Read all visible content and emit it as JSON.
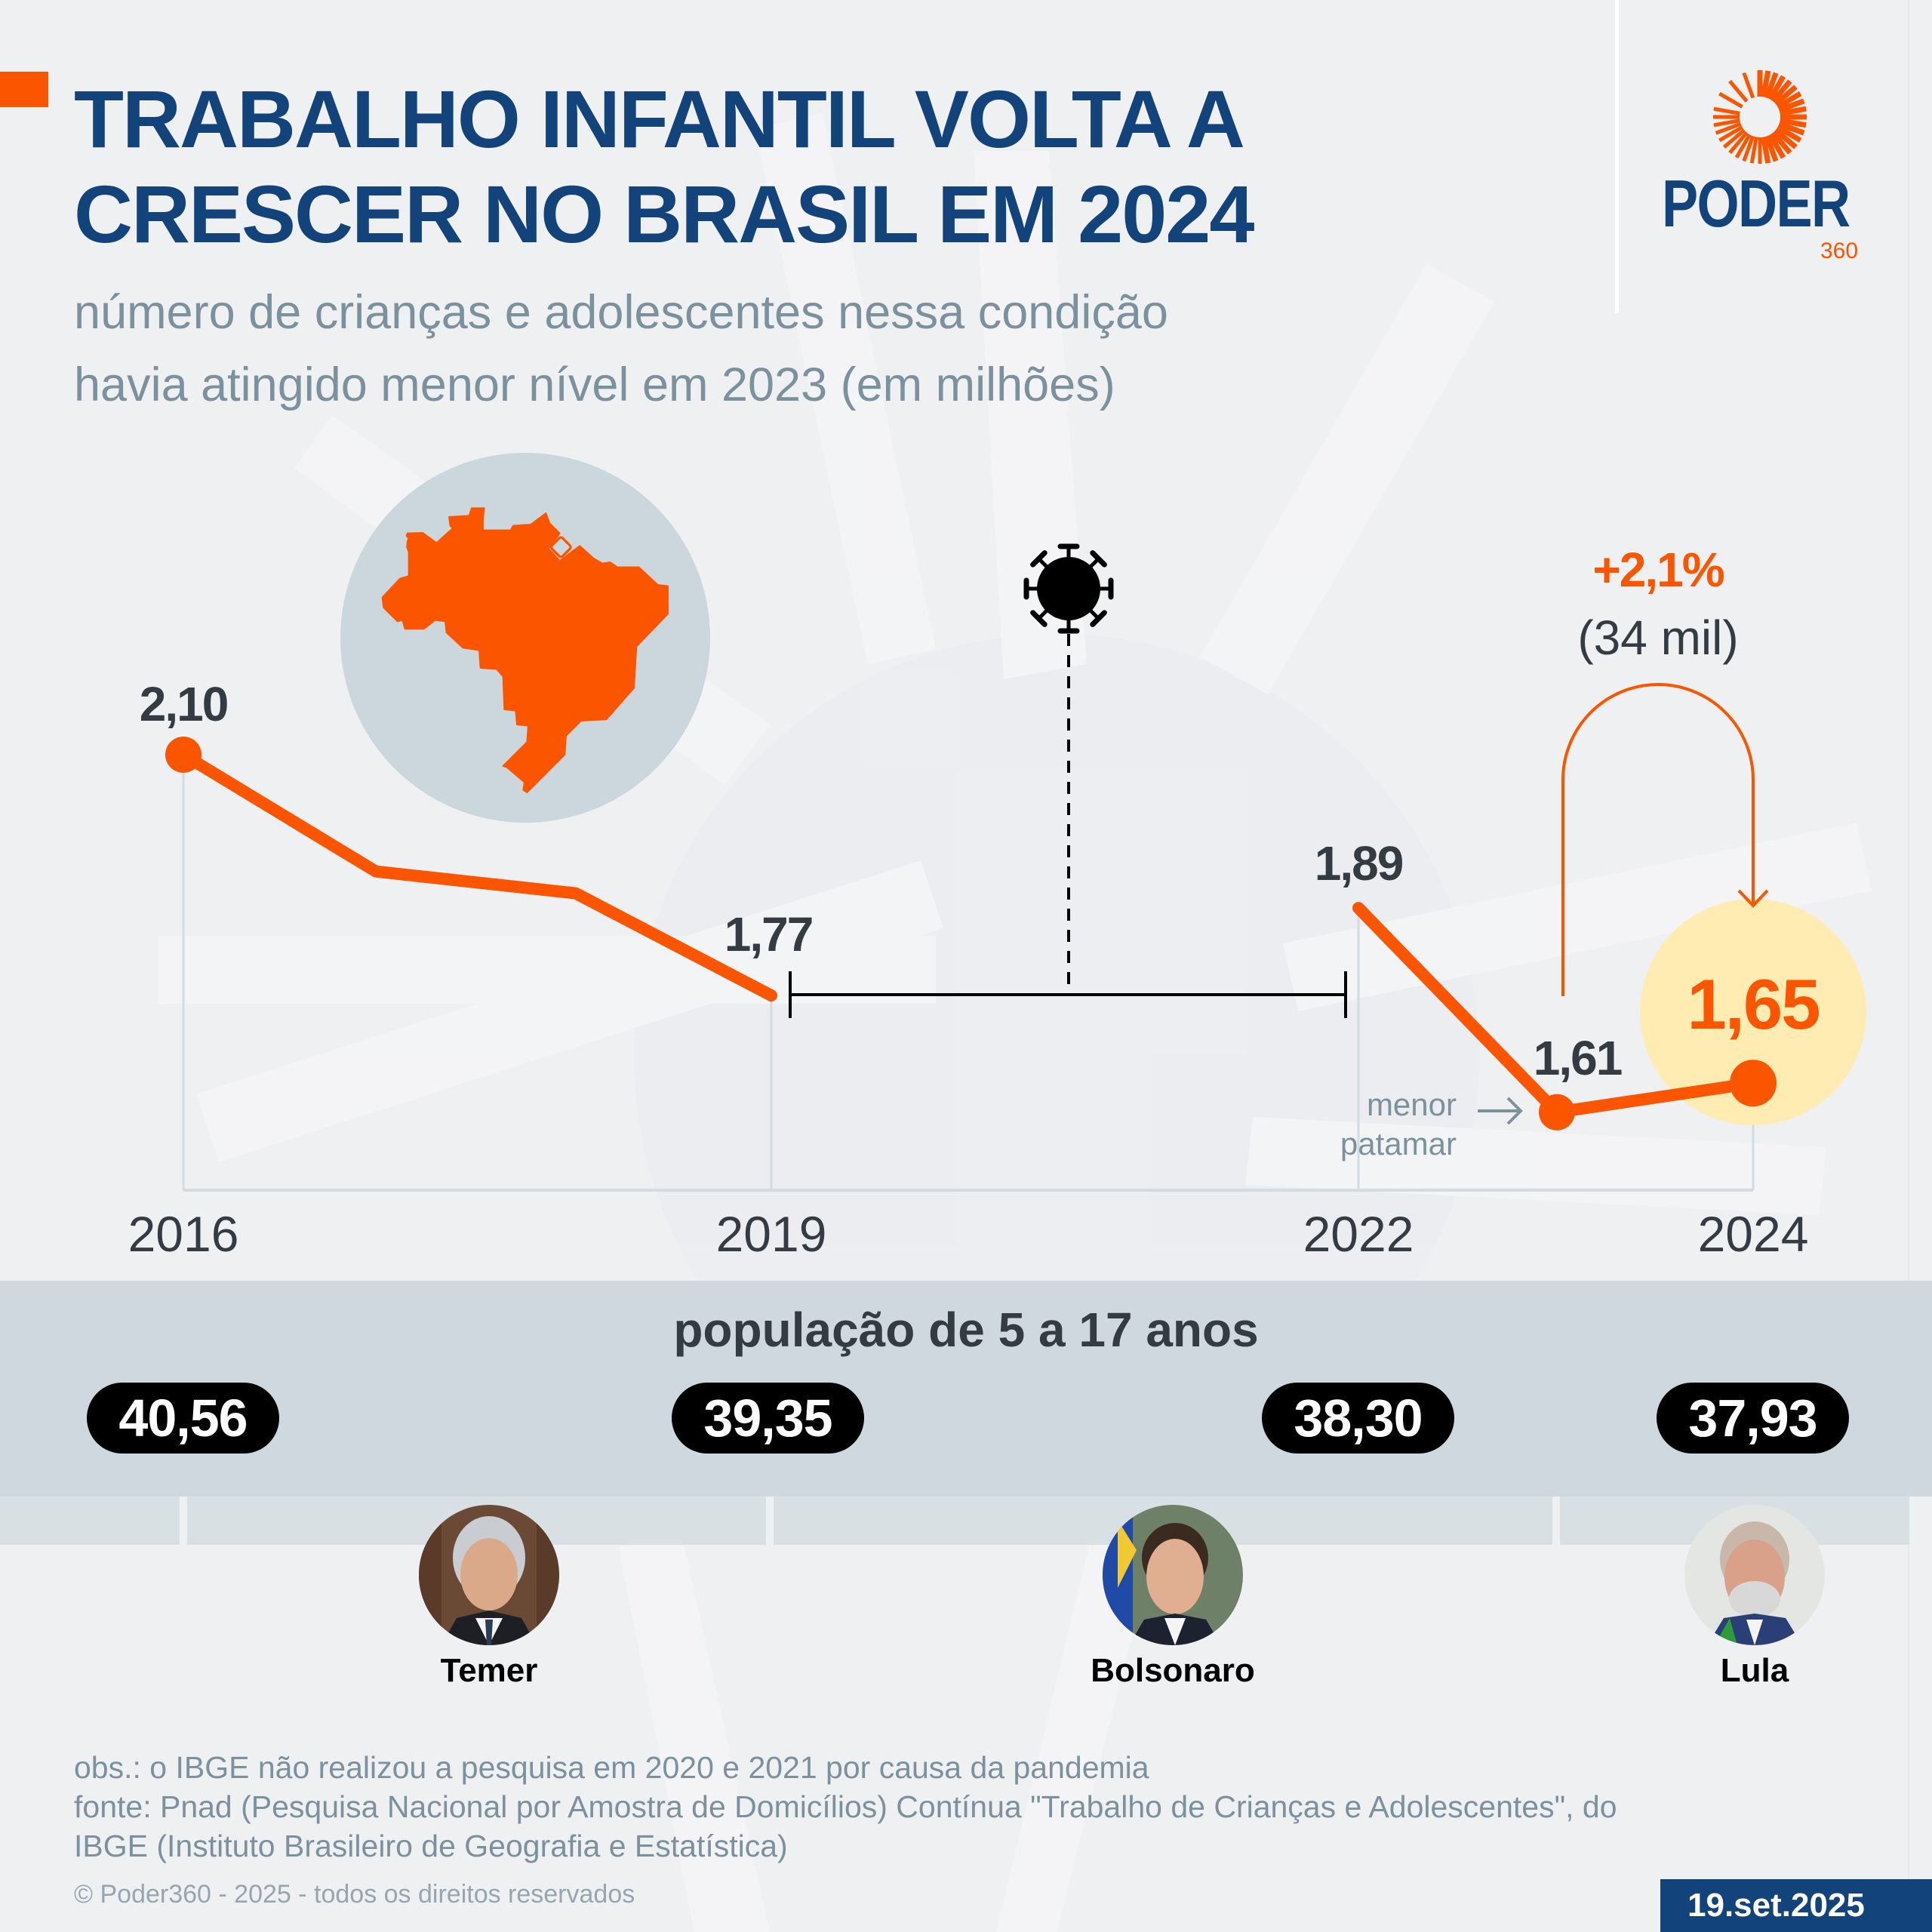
{
  "header": {
    "title_line1": "TRABALHO INFANTIL VOLTA A",
    "title_line2": "CRESCER NO BRASIL EM 2024",
    "subtitle_line1": "número de crianças e adolescentes nessa condição",
    "subtitle_line2": "havia atingido menor nível em 2023 (em milhões)"
  },
  "logo": {
    "name": "PODER",
    "suffix": "360",
    "icon": "sunburst-icon"
  },
  "colors": {
    "brand_blue": "#12437b",
    "accent_orange": "#fc5500",
    "highlight_yellow": "#ffecb3",
    "map_circle": "#ccd6dd",
    "band_gray": "#cfd8de",
    "text_dark": "#353b43",
    "text_muted": "#7b919d"
  },
  "chart_data": {
    "type": "line",
    "title": "TRABALHO INFANTIL VOLTA A CRESCER NO BRASIL EM 2024",
    "subtitle": "número de crianças e adolescentes nessa condição havia atingido menor nível em 2023 (em milhões)",
    "xlabel": "",
    "ylabel": "milhões",
    "unit": "milhões",
    "grid": false,
    "ylim": [
      1.5,
      2.2
    ],
    "segments": [
      {
        "name": "2016-2019",
        "x": [
          2016,
          2017,
          2018,
          2019
        ],
        "y": [
          2.1,
          1.94,
          1.91,
          1.77
        ]
      },
      {
        "name": "2022-2024",
        "x": [
          2022,
          2023,
          2024
        ],
        "y": [
          1.89,
          1.61,
          1.65
        ]
      }
    ],
    "points": [
      {
        "year": 2016,
        "value": 2.1,
        "label": "2,10",
        "marker": true
      },
      {
        "year": 2017,
        "value": 1.94,
        "label": "",
        "marker": false
      },
      {
        "year": 2018,
        "value": 1.91,
        "label": "",
        "marker": false
      },
      {
        "year": 2019,
        "value": 1.77,
        "label": "1,77",
        "marker": false
      },
      {
        "year": 2022,
        "value": 1.89,
        "label": "1,89",
        "marker": false
      },
      {
        "year": 2023,
        "value": 1.61,
        "label": "1,61",
        "marker": true
      },
      {
        "year": 2024,
        "value": 1.65,
        "label": "1,65",
        "marker": true,
        "highlight": true
      }
    ],
    "x_ticks": [
      {
        "year": 2016,
        "label": "2016"
      },
      {
        "year": 2019,
        "label": "2019"
      },
      {
        "year": 2022,
        "label": "2022"
      },
      {
        "year": 2024,
        "label": "2024"
      }
    ],
    "gap": {
      "from": 2019,
      "to": 2022,
      "icon": "virus-icon",
      "reason": "pandemia"
    },
    "annotations": {
      "change_pct": "+2,1%",
      "change_abs": "(34 mil)",
      "lowest_line1": "menor",
      "lowest_line2": "patamar"
    }
  },
  "population": {
    "title": "população de 5 a 17 anos",
    "values": [
      {
        "year": 2016,
        "value": "40,56"
      },
      {
        "year": 2019,
        "value": "39,35"
      },
      {
        "year": 2022,
        "value": "38,30"
      },
      {
        "year": 2024,
        "value": "37,93"
      }
    ]
  },
  "presidents": [
    {
      "name": "Temer"
    },
    {
      "name": "Bolsonaro"
    },
    {
      "name": "Lula"
    }
  ],
  "footer": {
    "obs": "obs.: o IBGE não realizou a pesquisa em 2020 e 2021 por causa da pandemia",
    "source_line1": "fonte: Pnad (Pesquisa Nacional por Amostra de Domicílios) Contínua \"Trabalho de Crianças e Adolescentes\", do",
    "source_line2": "IBGE (Instituto Brasileiro de Geografia e Estatística)",
    "copyright": "© Poder360 - 2025 - todos os direitos reservados",
    "date": "19.set.2025"
  }
}
